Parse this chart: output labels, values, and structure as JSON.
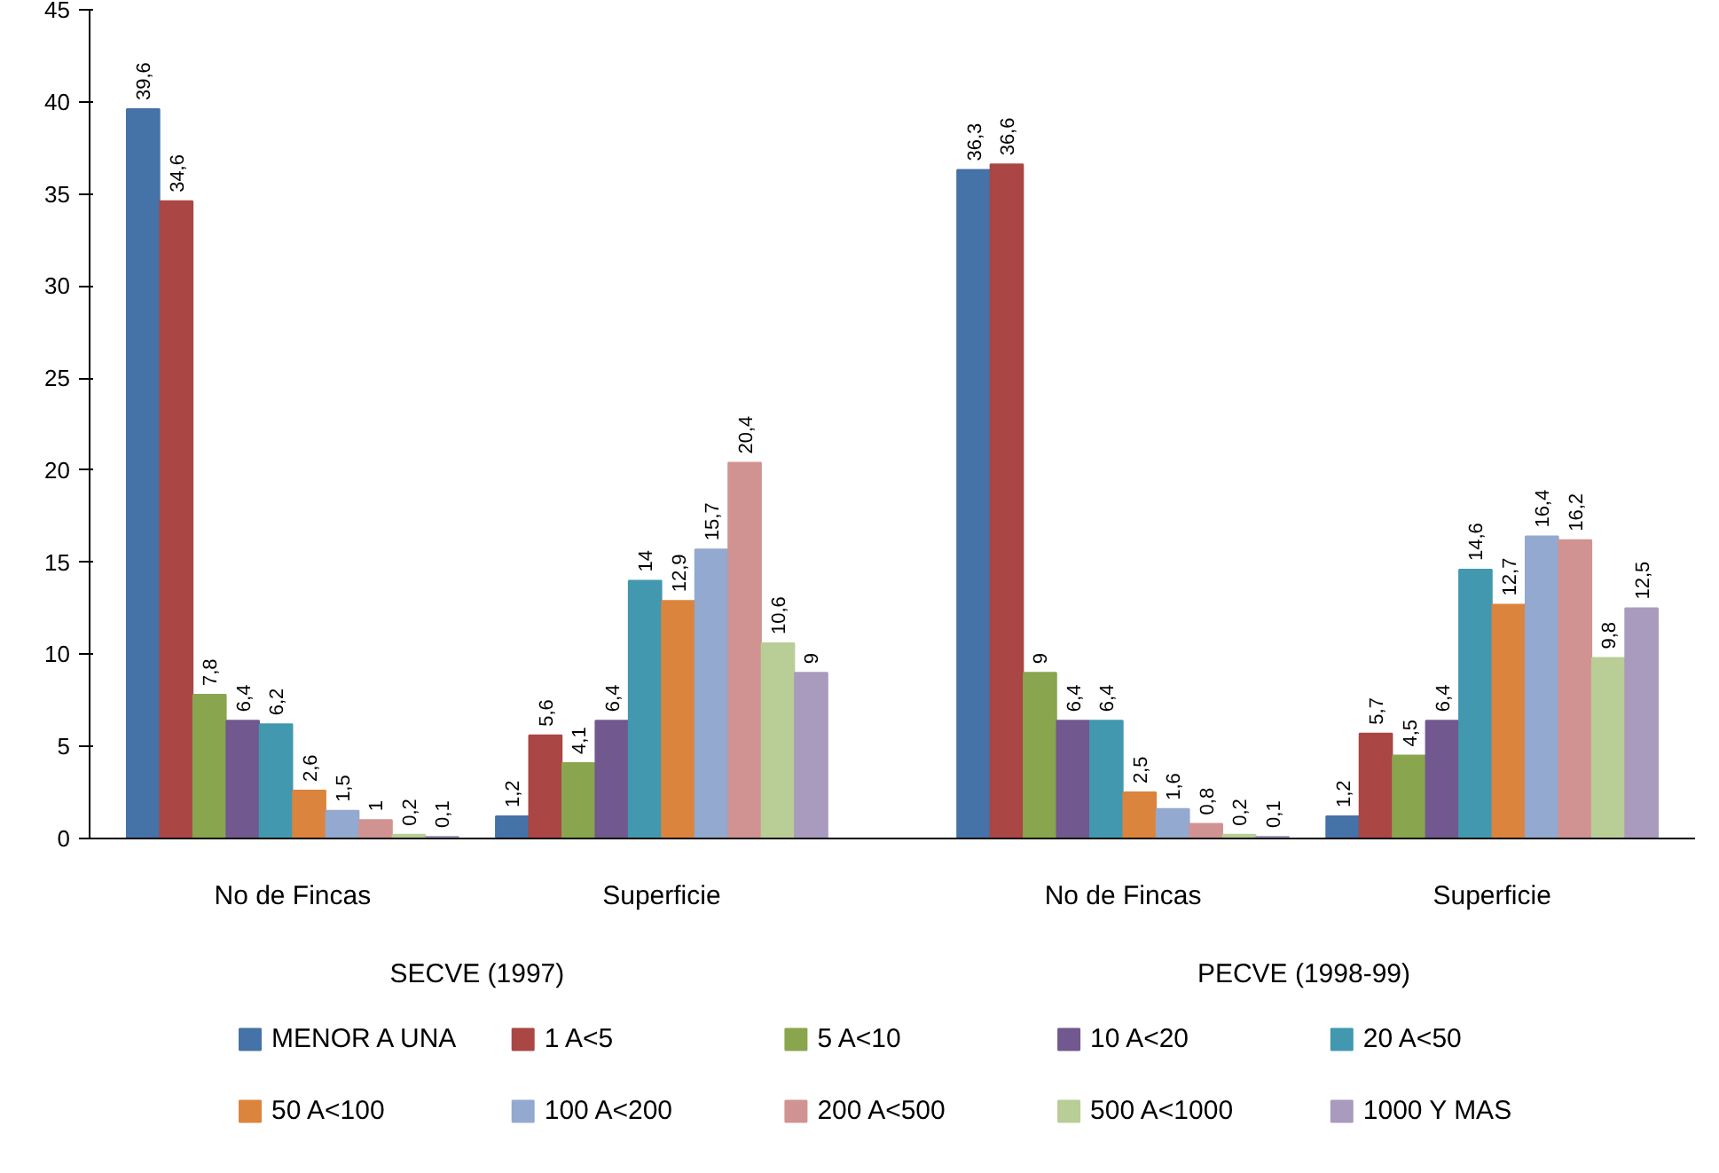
{
  "chart_data": {
    "type": "bar",
    "categories": [
      "No de Fincas",
      "Superficie",
      "No de Fincas",
      "Superficie"
    ],
    "annotations": [
      "SECVE (1997)",
      "PECVE  (1998-99)"
    ],
    "ylim": [
      0,
      45
    ],
    "yticks": [
      0,
      5,
      10,
      15,
      20,
      25,
      30,
      35,
      40,
      45
    ],
    "grid": false,
    "legend": "bottom",
    "series": [
      {
        "name": "MENOR A UNA",
        "color": "#4572a7",
        "values": [
          39.6,
          1.2,
          36.3,
          1.2
        ],
        "value_labels": [
          "39,6",
          "1,2",
          "36,3",
          "1,2"
        ]
      },
      {
        "name": "1 A<5",
        "color": "#aa4643",
        "values": [
          34.6,
          5.6,
          36.6,
          5.7
        ],
        "value_labels": [
          "34,6",
          "5,6",
          "36,6",
          "5,7"
        ]
      },
      {
        "name": "5 A<10",
        "color": "#89a54e",
        "values": [
          7.8,
          4.1,
          9,
          4.5
        ],
        "value_labels": [
          "7,8",
          "4,1",
          "9",
          "4,5"
        ]
      },
      {
        "name": "10 A<20",
        "color": "#71588f",
        "values": [
          6.4,
          6.4,
          6.4,
          6.4
        ],
        "value_labels": [
          "6,4",
          "6,4",
          "6,4",
          "6,4"
        ]
      },
      {
        "name": "20 A<50",
        "color": "#4198af",
        "values": [
          6.2,
          14,
          6.4,
          14.6
        ],
        "value_labels": [
          "6,2",
          "14",
          "6,4",
          "14,6"
        ]
      },
      {
        "name": "50 A<100",
        "color": "#db843d",
        "values": [
          2.6,
          12.9,
          2.5,
          12.7
        ],
        "value_labels": [
          "2,6",
          "12,9",
          "2,5",
          "12,7"
        ]
      },
      {
        "name": "100 A<200",
        "color": "#93a9cf",
        "values": [
          1.5,
          15.7,
          1.6,
          16.4
        ],
        "value_labels": [
          "1,5",
          "15,7",
          "1,6",
          "16,4"
        ]
      },
      {
        "name": "200 A<500",
        "color": "#d19392",
        "values": [
          1,
          20.4,
          0.8,
          16.2
        ],
        "value_labels": [
          "1",
          "20,4",
          "0,8",
          "16,2"
        ]
      },
      {
        "name": "500 A<1000",
        "color": "#b9cd96",
        "values": [
          0.2,
          10.6,
          0.2,
          9.8
        ],
        "value_labels": [
          "0,2",
          "10,6",
          "0,2",
          "9,8"
        ]
      },
      {
        "name": "1000 Y MAS",
        "color": "#a99bbd",
        "values": [
          0.1,
          9,
          0.1,
          12.5
        ],
        "value_labels": [
          "0,1",
          "9",
          "0,1",
          "12,5"
        ]
      }
    ]
  }
}
